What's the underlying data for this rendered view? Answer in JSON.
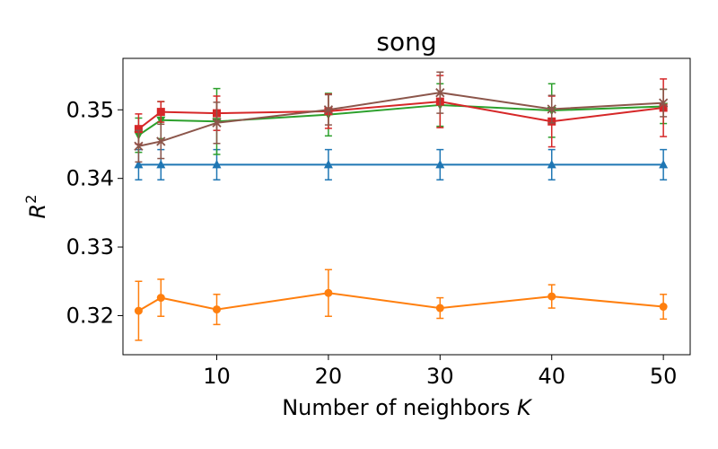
{
  "chart_data": {
    "type": "line",
    "title": "song",
    "xlabel_text": "Number of neighbors ",
    "xlabel_var": "K",
    "ylabel_var": "R",
    "ylabel_sup": "2",
    "xlim": [
      1.6,
      52.4
    ],
    "ylim": [
      0.3143,
      0.3575
    ],
    "xticks": [
      10,
      20,
      30,
      40,
      50
    ],
    "xtick_labels": [
      "10",
      "20",
      "30",
      "40",
      "50"
    ],
    "yticks": [
      0.32,
      0.33,
      0.34,
      0.35
    ],
    "ytick_labels": [
      "0.32",
      "0.33",
      "0.34",
      "0.35"
    ],
    "grid": false,
    "series": [
      {
        "color": "#1f77b4",
        "marker": "triangle-up",
        "x": [
          3,
          5,
          10,
          20,
          30,
          40,
          50
        ],
        "y": [
          0.342,
          0.342,
          0.342,
          0.342,
          0.342,
          0.342,
          0.342
        ],
        "err": [
          0.0022,
          0.0022,
          0.0022,
          0.0022,
          0.0022,
          0.0022,
          0.0022
        ]
      },
      {
        "color": "#ff7f0e",
        "marker": "circle",
        "x": [
          3,
          5,
          10,
          20,
          30,
          40,
          50
        ],
        "y": [
          0.3207,
          0.3226,
          0.3209,
          0.3233,
          0.3211,
          0.3228,
          0.3213
        ],
        "err": [
          0.0043,
          0.0027,
          0.0022,
          0.0034,
          0.0015,
          0.0017,
          0.0018
        ]
      },
      {
        "color": "#2ca02c",
        "marker": "triangle-down",
        "x": [
          3,
          5,
          10,
          20,
          30,
          40,
          50
        ],
        "y": [
          0.3463,
          0.3485,
          0.3483,
          0.3493,
          0.3507,
          0.3499,
          0.3505
        ],
        "err": [
          0.0025,
          0.0027,
          0.0048,
          0.0031,
          0.0031,
          0.0039,
          0.0025
        ]
      },
      {
        "color": "#d62728",
        "marker": "square",
        "x": [
          3,
          5,
          10,
          20,
          30,
          40,
          50
        ],
        "y": [
          0.3472,
          0.3497,
          0.3495,
          0.3498,
          0.3512,
          0.3483,
          0.3503
        ],
        "err": [
          0.0022,
          0.0015,
          0.0025,
          0.0025,
          0.0038,
          0.0037,
          0.0042
        ]
      },
      {
        "color": "#8c564b",
        "marker": "x",
        "x": [
          3,
          5,
          10,
          20,
          30,
          40,
          50
        ],
        "y": [
          0.3447,
          0.3454,
          0.3481,
          0.35,
          0.3525,
          0.3501,
          0.351
        ],
        "err": [
          0.0023,
          0.0025,
          0.003,
          0.0022,
          0.003,
          0.002,
          0.002
        ]
      }
    ]
  }
}
